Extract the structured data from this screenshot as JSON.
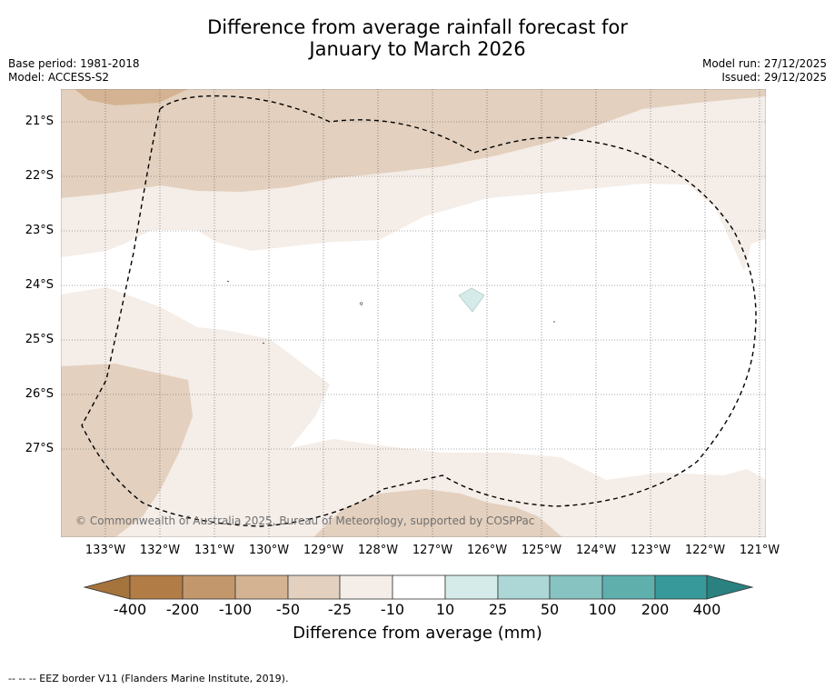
{
  "title": {
    "line1": "Difference from average rainfall forecast for",
    "line2": "January to March 2026"
  },
  "meta": {
    "base_period": "Base period: 1981-2018",
    "model": "Model: ACCESS-S2",
    "model_run": "Model run: 27/12/2025",
    "issued": "Issued: 29/12/2025"
  },
  "latitudes": [
    "21°S",
    "22°S",
    "23°S",
    "24°S",
    "25°S",
    "26°S",
    "27°S"
  ],
  "longitudes": [
    "133°W",
    "132°W",
    "131°W",
    "130°W",
    "129°W",
    "128°W",
    "127°W",
    "126°W",
    "125°W",
    "124°W",
    "123°W",
    "122°W",
    "121°W"
  ],
  "copyright": "© Commonwealth of Australia 2025, Bureau of Meteorology, supported by COSPPac",
  "colorbar": {
    "ticks": [
      "-400",
      "-200",
      "-100",
      "-50",
      "-25",
      "-10",
      "10",
      "25",
      "50",
      "100",
      "200",
      "400"
    ],
    "colors": [
      "#a5733c",
      "#b27c46",
      "#c2976b",
      "#d4b393",
      "#e3d0be",
      "#f4ede8",
      "#ffffff",
      "#d5ebea",
      "#acd7d6",
      "#86c3c1",
      "#5fafad",
      "#37999a",
      "#2a817f"
    ],
    "label": "Difference from average (mm)"
  },
  "footer": "--  --  -- EEZ border V11 (Flanders Marine Institute, 2019)."
}
